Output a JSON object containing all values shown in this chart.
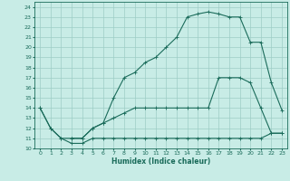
{
  "xlabel": "Humidex (Indice chaleur)",
  "bg_color": "#c8ece6",
  "grid_color": "#9dcdc5",
  "line_color": "#1a6b5a",
  "xlim": [
    -0.5,
    23.5
  ],
  "ylim": [
    10,
    24.5
  ],
  "xticks": [
    0,
    1,
    2,
    3,
    4,
    5,
    6,
    7,
    8,
    9,
    10,
    11,
    12,
    13,
    14,
    15,
    16,
    17,
    18,
    19,
    20,
    21,
    22,
    23
  ],
  "yticks": [
    10,
    11,
    12,
    13,
    14,
    15,
    16,
    17,
    18,
    19,
    20,
    21,
    22,
    23,
    24
  ],
  "line1_x": [
    0,
    1,
    2,
    3,
    4,
    5,
    6,
    7,
    8,
    9,
    10,
    11,
    12,
    13,
    14,
    15,
    16,
    17,
    18,
    19,
    20,
    21,
    22,
    23
  ],
  "line1_y": [
    14,
    12,
    11,
    10.5,
    10.5,
    11,
    11,
    11,
    11,
    11,
    11,
    11,
    11,
    11,
    11,
    11,
    11,
    11,
    11,
    11,
    11,
    11,
    11.5,
    11.5
  ],
  "line2_x": [
    0,
    1,
    2,
    3,
    4,
    5,
    6,
    7,
    8,
    9,
    10,
    11,
    12,
    13,
    14,
    15,
    16,
    17,
    18,
    19,
    20,
    21,
    22,
    23
  ],
  "line2_y": [
    14,
    12,
    11,
    11,
    11,
    12,
    12.5,
    13,
    13.5,
    14,
    14,
    14,
    14,
    14,
    14,
    14,
    14,
    17,
    17,
    17,
    16.5,
    14,
    11.5,
    11.5
  ],
  "line3_x": [
    3,
    4,
    5,
    6,
    7,
    8,
    9,
    10,
    11,
    12,
    13,
    14,
    15,
    16,
    17,
    18,
    19,
    20,
    21,
    22,
    23
  ],
  "line3_y": [
    11,
    11,
    12,
    12.5,
    15,
    17,
    17.5,
    18.5,
    19,
    20,
    21,
    23,
    23.3,
    23.5,
    23.3,
    23,
    23,
    20.5,
    20.5,
    16.5,
    13.8
  ],
  "xlabel_fontsize": 5.5,
  "tick_fontsize": 4.5,
  "linewidth": 0.8,
  "markersize": 2.5
}
